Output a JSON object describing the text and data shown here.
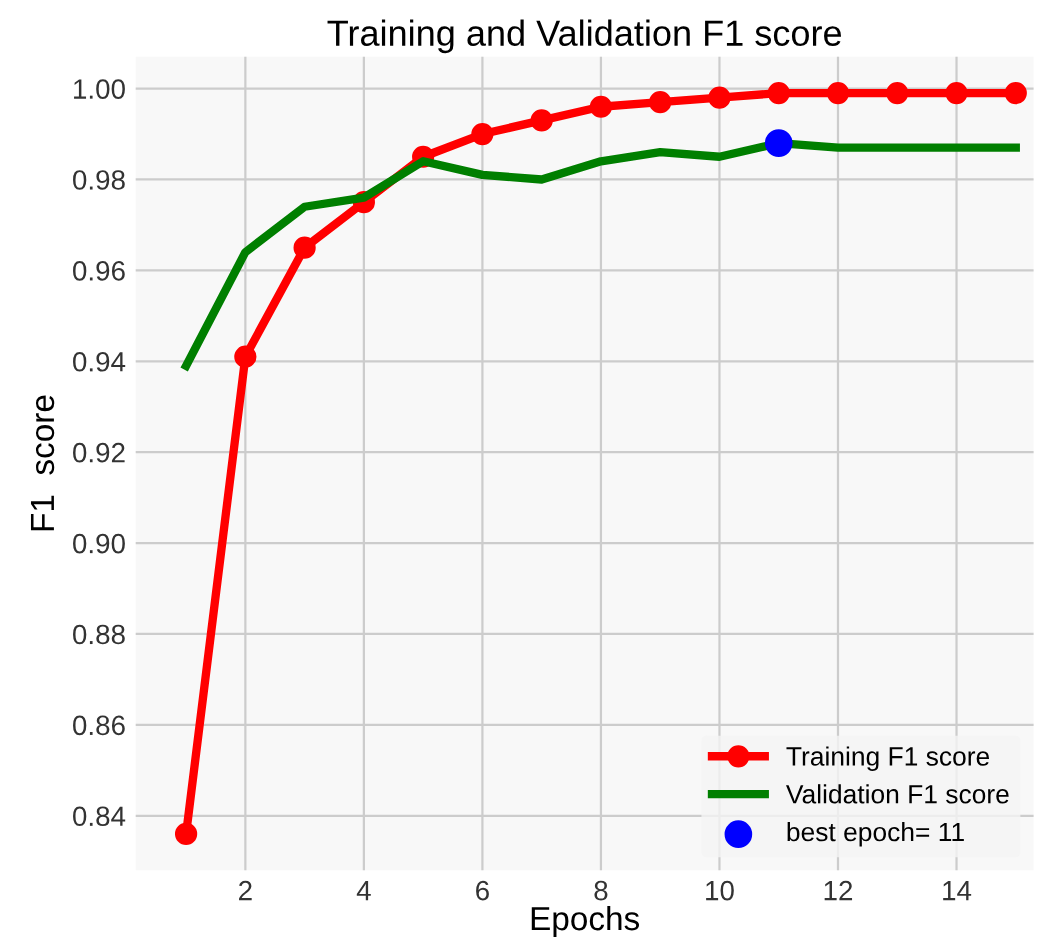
{
  "chart_data": {
    "type": "line",
    "title": "Training and Validation F1 score",
    "xlabel": "Epochs",
    "ylabel": "F1  score",
    "x": [
      1,
      2,
      3,
      4,
      5,
      6,
      7,
      8,
      9,
      10,
      11,
      12,
      13,
      14,
      15
    ],
    "series": [
      {
        "name": "Training F1 score",
        "color": "#ff0000",
        "marker": "circle",
        "values": [
          0.836,
          0.941,
          0.965,
          0.975,
          0.985,
          0.99,
          0.993,
          0.996,
          0.997,
          0.998,
          0.999,
          0.999,
          0.999,
          0.999,
          0.999
        ]
      },
      {
        "name": "Validation F1 score",
        "color": "#007f00",
        "marker": "none",
        "values": [
          0.939,
          0.964,
          0.974,
          0.976,
          0.984,
          0.981,
          0.98,
          0.984,
          0.986,
          0.985,
          0.988,
          0.987,
          0.987,
          0.987,
          0.987
        ]
      },
      {
        "name": "best epoch= 11",
        "type": "scatter",
        "color": "#0000ff",
        "marker": "circle",
        "x": [
          11
        ],
        "values": [
          0.988
        ]
      }
    ],
    "xlim": [
      0.15,
      15.3
    ],
    "ylim": [
      0.828,
      1.007
    ],
    "xticks": [
      2,
      4,
      6,
      8,
      10,
      12,
      14
    ],
    "yticks": [
      {
        "value": 0.84,
        "label": "0.84"
      },
      {
        "value": 0.86,
        "label": "0.86"
      },
      {
        "value": 0.88,
        "label": "0.88"
      },
      {
        "value": 0.9,
        "label": "0.90"
      },
      {
        "value": 0.92,
        "label": "0.92"
      },
      {
        "value": 0.94,
        "label": "0.94"
      },
      {
        "value": 0.96,
        "label": "0.96"
      },
      {
        "value": 0.98,
        "label": "0.98"
      },
      {
        "value": 1.0,
        "label": "1.00"
      }
    ],
    "grid": true,
    "legend": "bottom right",
    "line_style": "solid"
  }
}
